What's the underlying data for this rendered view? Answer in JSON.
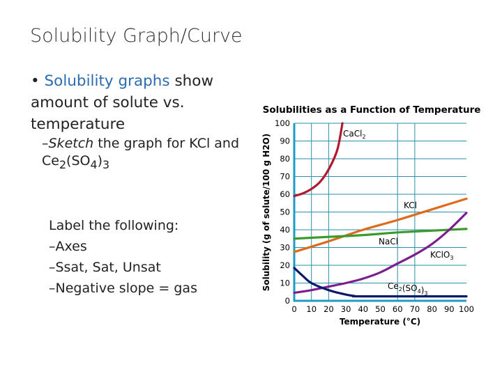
{
  "slide": {
    "title": "Solubility Graph/Curve",
    "bullet1_highlight": "Solubility graphs",
    "bullet1_rest": " show amount of solute vs. temperature",
    "sub_italic": "Sketch",
    "sub_rest": " the graph for KCl and Ce",
    "sub_formula_tail": "(SO",
    "sub_formula_end": ")",
    "sub_sub2": "2",
    "sub_sub4": "4",
    "sub_sub3": "3",
    "label_heading": "Label the following:",
    "label_items": [
      "Axes",
      "Ssat, Sat, Unsat",
      "Negative slope = gas"
    ],
    "dash": "–",
    "bullet": "•"
  },
  "chart_data": {
    "type": "line",
    "title": "Solubilities as a Function of Temperature",
    "xlabel": "Temperature (°C)",
    "ylabel": "Solubility (g of solute/100 g H2O)",
    "xlim": [
      0,
      100
    ],
    "ylim": [
      0,
      100
    ],
    "xticks": [
      0,
      10,
      20,
      30,
      40,
      50,
      60,
      70,
      80,
      90,
      100
    ],
    "yticks": [
      0,
      10,
      20,
      30,
      40,
      50,
      60,
      70,
      80,
      90,
      100
    ],
    "grid": true,
    "series": [
      {
        "name": "CaCl2",
        "color": "#b0192e",
        "x": [
          0,
          5,
          10,
          15,
          20,
          25,
          28
        ],
        "y": [
          59,
          60.5,
          63,
          67,
          74,
          85,
          100
        ]
      },
      {
        "name": "KCl",
        "color": "#e06a1b",
        "x": [
          0,
          20,
          40,
          60,
          80,
          100
        ],
        "y": [
          27.5,
          33.5,
          40,
          45.5,
          51.5,
          57.5
        ]
      },
      {
        "name": "NaCl",
        "color": "#3a9a2a",
        "x": [
          0,
          20,
          40,
          60,
          80,
          100
        ],
        "y": [
          35,
          36,
          37,
          38.5,
          39.5,
          40.5
        ]
      },
      {
        "name": "KClO3",
        "color": "#7b1f8e",
        "x": [
          0,
          10,
          20,
          30,
          40,
          50,
          60,
          70,
          80,
          90,
          100
        ],
        "y": [
          4.5,
          6,
          8,
          10,
          12.5,
          16,
          21,
          26,
          32,
          40,
          49.5
        ]
      },
      {
        "name": "Ce2(SO4)3",
        "color": "#0d1a6b",
        "x": [
          0,
          5,
          10,
          20,
          30,
          35,
          40,
          100
        ],
        "y": [
          18.5,
          14,
          10,
          6,
          3.5,
          2.7,
          2.5,
          2.5
        ]
      }
    ],
    "colors": {
      "axis": "#1f9cc6",
      "grid": "#2a8fa8"
    }
  }
}
